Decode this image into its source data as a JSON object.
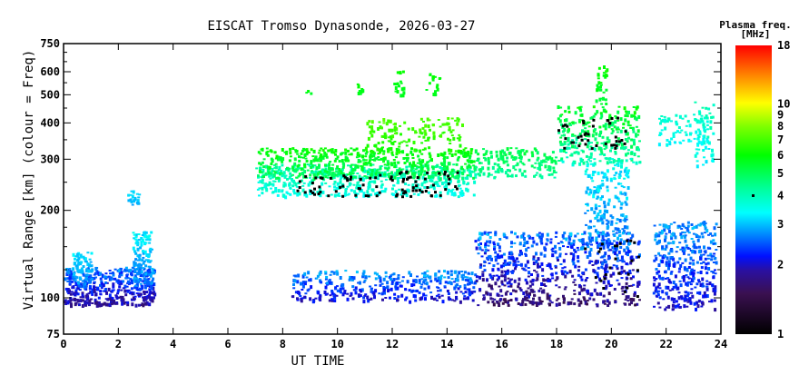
{
  "chart_data": {
    "type": "scatter",
    "title": "EISCAT Tromso Dynasonde, 2026-03-27",
    "xlabel": "UT TIME",
    "ylabel": "Virtual Range [km] (colour = Freq)",
    "xlim": [
      0,
      24
    ],
    "ylim": [
      75,
      750
    ],
    "yscale": "log",
    "xticks": [
      0,
      2,
      4,
      6,
      8,
      10,
      12,
      14,
      16,
      18,
      20,
      22,
      24
    ],
    "yticks": [
      75,
      100,
      200,
      300,
      400,
      500,
      600,
      750
    ],
    "yticks_minor": [
      125,
      150,
      175,
      250,
      350,
      450,
      550,
      650,
      700
    ],
    "colorbar": {
      "title": "Plasma freq.",
      "units": "[MHz]",
      "range": [
        1,
        18
      ],
      "ticks": [
        1,
        2,
        3,
        4,
        5,
        6,
        7,
        8,
        9,
        10,
        18
      ],
      "marker_value": 4
    },
    "clusters": [
      {
        "t": [
          0.0,
          3.3
        ],
        "h": [
          95,
          128
        ],
        "f": [
          1.6,
          3.0
        ],
        "n": 420
      },
      {
        "t": [
          0.3,
          1.0
        ],
        "h": [
          110,
          145
        ],
        "f": [
          2.5,
          3.4
        ],
        "n": 80
      },
      {
        "t": [
          2.5,
          3.2
        ],
        "h": [
          110,
          170
        ],
        "f": [
          2.4,
          3.6
        ],
        "n": 120
      },
      {
        "t": [
          2.3,
          2.8
        ],
        "h": [
          210,
          235
        ],
        "f": [
          2.8,
          3.3
        ],
        "n": 20
      },
      {
        "t": [
          7.0,
          15.0
        ],
        "h": [
          225,
          290
        ],
        "f": [
          3.3,
          4.5
        ],
        "n": 520
      },
      {
        "t": [
          7.0,
          15.0
        ],
        "h": [
          260,
          330
        ],
        "f": [
          4.5,
          6.5
        ],
        "n": 500
      },
      {
        "t": [
          11.0,
          14.6
        ],
        "h": [
          320,
          420
        ],
        "f": [
          6.0,
          7.5
        ],
        "n": 140
      },
      {
        "t": [
          8.8,
          9.0
        ],
        "h": [
          510,
          520
        ],
        "f": [
          5.5,
          6.0
        ],
        "n": 3
      },
      {
        "t": [
          10.7,
          10.9
        ],
        "h": [
          510,
          560
        ],
        "f": [
          5.5,
          6.2
        ],
        "n": 10
      },
      {
        "t": [
          12.0,
          12.4
        ],
        "h": [
          500,
          610
        ],
        "f": [
          5.5,
          6.2
        ],
        "n": 20
      },
      {
        "t": [
          13.2,
          13.7
        ],
        "h": [
          500,
          600
        ],
        "f": [
          5.5,
          6.2
        ],
        "n": 18
      },
      {
        "t": [
          8.3,
          15.0
        ],
        "h": [
          98,
          125
        ],
        "f": [
          1.8,
          3.2
        ],
        "n": 380
      },
      {
        "t": [
          15.0,
          18.0
        ],
        "h": [
          260,
          330
        ],
        "f": [
          4.0,
          5.5
        ],
        "n": 160
      },
      {
        "t": [
          18.0,
          21.0
        ],
        "h": [
          290,
          460
        ],
        "f": [
          3.5,
          6.5
        ],
        "n": 300
      },
      {
        "t": [
          19.0,
          20.6
        ],
        "h": [
          150,
          290
        ],
        "f": [
          2.3,
          3.8
        ],
        "n": 200
      },
      {
        "t": [
          19.4,
          19.8
        ],
        "h": [
          450,
          640
        ],
        "f": [
          5.0,
          6.5
        ],
        "n": 30
      },
      {
        "t": [
          15.0,
          21.0
        ],
        "h": [
          95,
          170
        ],
        "f": [
          1.4,
          3.2
        ],
        "n": 700
      },
      {
        "t": [
          21.7,
          23.5
        ],
        "h": [
          340,
          430
        ],
        "f": [
          3.2,
          4.0
        ],
        "n": 80
      },
      {
        "t": [
          23.0,
          23.7
        ],
        "h": [
          280,
          480
        ],
        "f": [
          3.0,
          4.5
        ],
        "n": 50
      },
      {
        "t": [
          21.5,
          23.8
        ],
        "h": [
          92,
          185
        ],
        "f": [
          1.8,
          3.2
        ],
        "n": 380
      }
    ],
    "foF2_trace": [
      {
        "t": [
          8.5,
          14.5
        ],
        "h": [
          225,
          275
        ],
        "n": 90
      },
      {
        "t": [
          18.0,
          20.5
        ],
        "h": [
          330,
          420
        ],
        "n": 40
      },
      {
        "t": [
          19.0,
          21.0
        ],
        "h": [
          100,
          160
        ],
        "n": 25
      }
    ]
  }
}
